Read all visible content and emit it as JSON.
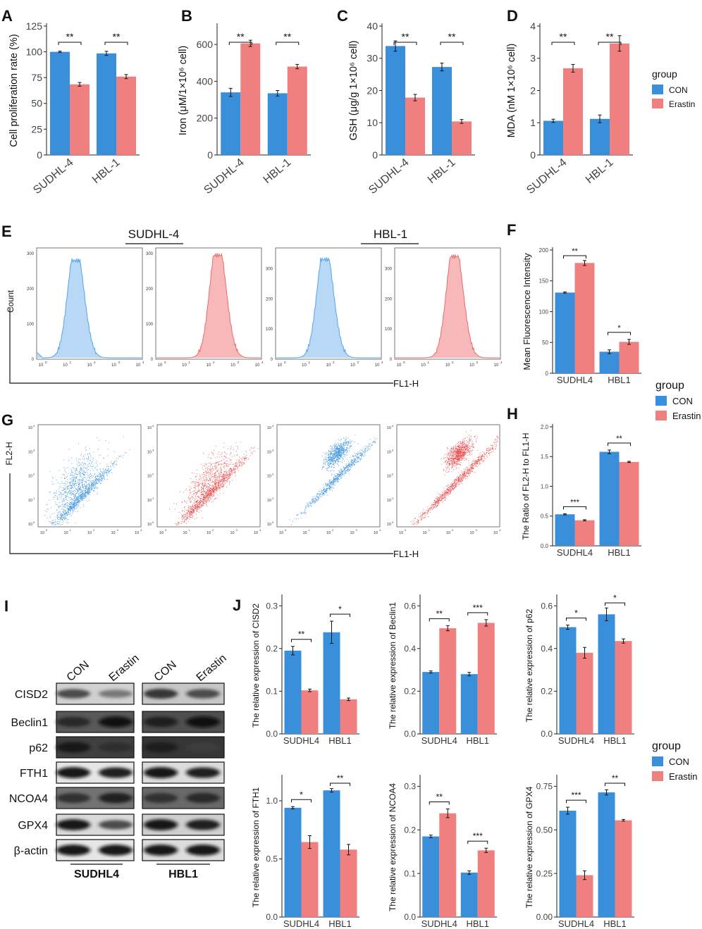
{
  "colors": {
    "con": "#3a8fdb",
    "erastin": "#f08080",
    "con_flow": "#55a5e8",
    "erastin_flow": "#ec6b6b",
    "flow_fill_con": "#b8d8f5",
    "flow_fill_er": "#f6b8b8"
  },
  "legend_top": {
    "title": "group",
    "items": [
      "CON",
      "Erastin"
    ]
  },
  "legend_mid": {
    "title": "group",
    "items": [
      "CON",
      "Erastin"
    ]
  },
  "legend_bot": {
    "title": "group",
    "items": [
      "CON",
      "Erastin"
    ]
  },
  "panel_e": {
    "label": "E",
    "group_labels": [
      "SUDHL-4",
      "HBL-1"
    ],
    "ylabel": "Count",
    "xlabel": "FL1-H",
    "y_ticks": [
      [
        "300",
        "200",
        "100",
        "0"
      ],
      [
        "300",
        "200",
        "100",
        "0"
      ],
      [
        "300",
        "200",
        "100",
        "0"
      ],
      [
        "300",
        "200",
        "100",
        "0"
      ]
    ],
    "x_ticks": [
      "10",
      "10",
      "10",
      "10",
      "10"
    ],
    "x_exps": [
      "0",
      "1",
      "2",
      "3",
      "4"
    ]
  },
  "panel_g": {
    "label": "G",
    "ylabel": "FL2-H",
    "xlabel": "FL1-H",
    "y_ticks": [
      "10",
      "10",
      "10",
      "10",
      "10"
    ],
    "y_exps": [
      "4",
      "3",
      "2",
      "1",
      "0"
    ],
    "x_ticks": [
      "10",
      "10",
      "10",
      "10",
      "10"
    ],
    "x_exps": [
      "0",
      "1",
      "2",
      "3",
      "4"
    ]
  },
  "panel_i": {
    "label": "I",
    "col_labels": [
      "CON",
      "Erastin",
      "CON",
      "Erastin"
    ],
    "rows": [
      "CISD2",
      "Beclin1",
      "p62",
      "FTH1",
      "NCOA4",
      "GPX4",
      "β-actin"
    ],
    "group_labels": [
      "SUDHL4",
      "HBL1"
    ]
  },
  "panel_j_label": "J",
  "chart_data": [
    {
      "panel": "A",
      "type": "bar",
      "ylabel": "Cell proliferation rate (%)",
      "categories": [
        "SUDHL-4",
        "HBL-1"
      ],
      "ylim": [
        0,
        125
      ],
      "yticks": [
        0,
        25,
        50,
        75,
        100,
        125
      ],
      "series": [
        {
          "name": "CON",
          "values": [
            100,
            98.5
          ],
          "errors": [
            0.7,
            2
          ]
        },
        {
          "name": "Erastin",
          "values": [
            68.5,
            76
          ],
          "errors": [
            1.8,
            2
          ]
        }
      ],
      "sig": [
        "**",
        "**"
      ]
    },
    {
      "panel": "B",
      "type": "bar",
      "ylabel": "Iron (μM/1×10⁶ cell)",
      "categories": [
        "SUDHL-4",
        "HBL-1"
      ],
      "ylim": [
        0,
        700
      ],
      "yticks": [
        0,
        200,
        400,
        600
      ],
      "series": [
        {
          "name": "CON",
          "values": [
            340,
            335
          ],
          "errors": [
            22,
            15
          ]
        },
        {
          "name": "Erastin",
          "values": [
            606,
            480
          ],
          "errors": [
            17,
            12
          ]
        }
      ],
      "sig": [
        "**",
        "**"
      ]
    },
    {
      "panel": "C",
      "type": "bar",
      "ylabel": "GSH (μg/g 1×10⁶ cell)",
      "categories": [
        "SUDHL-4",
        "HBL-1"
      ],
      "ylim": [
        0,
        40
      ],
      "yticks": [
        0,
        10,
        20,
        30,
        40
      ],
      "series": [
        {
          "name": "CON",
          "values": [
            33.8,
            27.3
          ],
          "errors": [
            1.6,
            1.2
          ]
        },
        {
          "name": "Erastin",
          "values": [
            17.8,
            10.4
          ],
          "errors": [
            1,
            0.6
          ]
        }
      ],
      "sig": [
        "**",
        "**"
      ]
    },
    {
      "panel": "D",
      "type": "bar",
      "ylabel": "MDA (nM 1×10⁶ cell)",
      "categories": [
        "SUDHL-4",
        "HBL-1"
      ],
      "ylim": [
        0,
        4
      ],
      "yticks": [
        0,
        1,
        2,
        3,
        4
      ],
      "series": [
        {
          "name": "CON",
          "values": [
            1.06,
            1.12
          ],
          "errors": [
            0.05,
            0.12
          ]
        },
        {
          "name": "Erastin",
          "values": [
            2.69,
            3.46
          ],
          "errors": [
            0.12,
            0.24
          ]
        }
      ],
      "sig": [
        "**",
        "**"
      ]
    },
    {
      "panel": "F",
      "type": "bar",
      "ylabel": "Mean Fluorescence Intensity",
      "categories": [
        "SUDHL4",
        "HBL1"
      ],
      "ylim": [
        0,
        200
      ],
      "yticks": [
        0,
        50,
        100,
        150,
        200
      ],
      "series": [
        {
          "name": "CON",
          "values": [
            131,
            35
          ],
          "errors": [
            1,
            3
          ]
        },
        {
          "name": "Erastin",
          "values": [
            179,
            51
          ],
          "errors": [
            4,
            4
          ]
        }
      ],
      "sig": [
        "**",
        "*"
      ]
    },
    {
      "panel": "H",
      "type": "bar",
      "ylabel": "The Ratio of FL2-H to FL1-H",
      "categories": [
        "SUDHL4",
        "HBL1"
      ],
      "ylim": [
        0,
        2
      ],
      "yticks": [
        0,
        0.5,
        1,
        1.5,
        2
      ],
      "ytick_labels": [
        "0.0",
        "0.5",
        "1.0",
        "1.5",
        "2.0"
      ],
      "series": [
        {
          "name": "CON",
          "values": [
            0.53,
            1.58
          ],
          "errors": [
            0.01,
            0.03
          ]
        },
        {
          "name": "Erastin",
          "values": [
            0.43,
            1.41
          ],
          "errors": [
            0.01,
            0.01
          ]
        }
      ],
      "sig": [
        "***",
        "**"
      ]
    },
    {
      "panel": "J1",
      "type": "bar",
      "ylabel": "The relative expression of CISD2",
      "categories": [
        "SUDHL4",
        "HBL1"
      ],
      "ylim": [
        0,
        0.32
      ],
      "yticks": [
        0,
        0.1,
        0.2,
        0.3
      ],
      "ytick_labels": [
        "0.0",
        "0.1",
        "0.2",
        "0.3"
      ],
      "series": [
        {
          "name": "CON",
          "values": [
            0.195,
            0.238
          ],
          "errors": [
            0.01,
            0.026
          ]
        },
        {
          "name": "Erastin",
          "values": [
            0.102,
            0.081
          ],
          "errors": [
            0.003,
            0.003
          ]
        }
      ],
      "sig": [
        "**",
        "*"
      ]
    },
    {
      "panel": "J2",
      "type": "bar",
      "ylabel": "The relative expression of Beclin1",
      "categories": [
        "SUDHL4",
        "HBL1"
      ],
      "ylim": [
        0,
        0.64
      ],
      "yticks": [
        0,
        0.2,
        0.4,
        0.6
      ],
      "ytick_labels": [
        "0.0",
        "0.2",
        "0.4",
        "0.6"
      ],
      "series": [
        {
          "name": "CON",
          "values": [
            0.29,
            0.28
          ],
          "errors": [
            0.005,
            0.008
          ]
        },
        {
          "name": "Erastin",
          "values": [
            0.495,
            0.52
          ],
          "errors": [
            0.012,
            0.015
          ]
        }
      ],
      "sig": [
        "**",
        "***"
      ]
    },
    {
      "panel": "J3",
      "type": "bar",
      "ylabel": "The relative expression of p62",
      "categories": [
        "SUDHL4",
        "HBL1"
      ],
      "ylim": [
        0,
        0.64
      ],
      "yticks": [
        0,
        0.2,
        0.4,
        0.6
      ],
      "ytick_labels": [
        "0.0",
        "0.2",
        "0.4",
        "0.6"
      ],
      "series": [
        {
          "name": "CON",
          "values": [
            0.5,
            0.56
          ],
          "errors": [
            0.01,
            0.03
          ]
        },
        {
          "name": "Erastin",
          "values": [
            0.38,
            0.435
          ],
          "errors": [
            0.025,
            0.01
          ]
        }
      ],
      "sig": [
        "*",
        "*"
      ]
    },
    {
      "panel": "J4",
      "type": "bar",
      "ylabel": "The relative expression of FTH1",
      "categories": [
        "SUDHL4",
        "HBL1"
      ],
      "ylim": [
        0,
        1.2
      ],
      "yticks": [
        0,
        0.5,
        1
      ],
      "ytick_labels": [
        "0.0",
        "0.5",
        "1.0"
      ],
      "series": [
        {
          "name": "CON",
          "values": [
            0.94,
            1.09
          ],
          "errors": [
            0.01,
            0.015
          ]
        },
        {
          "name": "Erastin",
          "values": [
            0.645,
            0.58
          ],
          "errors": [
            0.055,
            0.045
          ]
        }
      ],
      "sig": [
        "*",
        "**"
      ]
    },
    {
      "panel": "J5",
      "type": "bar",
      "ylabel": "The relative expression of NCOA4",
      "categories": [
        "SUDHL4",
        "HBL1"
      ],
      "ylim": [
        0,
        0.32
      ],
      "yticks": [
        0,
        0.1,
        0.2,
        0.3
      ],
      "ytick_labels": [
        "0.0",
        "0.1",
        "0.2",
        "0.3"
      ],
      "series": [
        {
          "name": "CON",
          "values": [
            0.185,
            0.102
          ],
          "errors": [
            0.003,
            0.004
          ]
        },
        {
          "name": "Erastin",
          "values": [
            0.238,
            0.153
          ],
          "errors": [
            0.01,
            0.005
          ]
        }
      ],
      "sig": [
        "**",
        "***"
      ]
    },
    {
      "panel": "J6",
      "type": "bar",
      "ylabel": "The relative expression of GPX4",
      "categories": [
        "SUDHL4",
        "HBL1"
      ],
      "ylim": [
        0,
        0.8
      ],
      "yticks": [
        0,
        0.25,
        0.5,
        0.75
      ],
      "ytick_labels": [
        "0.00",
        "0.25",
        "0.50",
        "0.75"
      ],
      "series": [
        {
          "name": "CON",
          "values": [
            0.61,
            0.715
          ],
          "errors": [
            0.02,
            0.015
          ]
        },
        {
          "name": "Erastin",
          "values": [
            0.24,
            0.555
          ],
          "errors": [
            0.025,
            0.005
          ]
        }
      ],
      "sig": [
        "***",
        "**"
      ]
    }
  ]
}
